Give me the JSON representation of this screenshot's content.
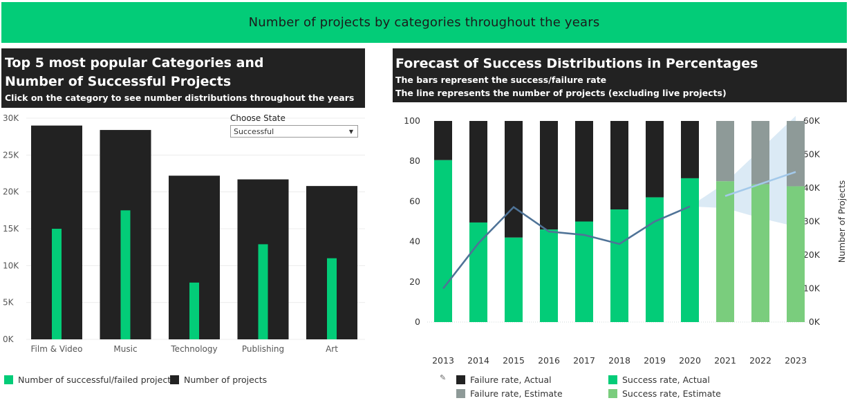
{
  "header": {
    "title": "Number of projects by categories throughout the years"
  },
  "left_panel": {
    "title": "Top 5 most popular Categories and Number of Successful  Projects",
    "subtitle": "Click on the category to see number distributions throughout the years",
    "filter": {
      "label": "Choose State",
      "value": "Successful"
    },
    "legend": [
      {
        "label": "Number of successful/failed projects",
        "color": "#03cc78"
      },
      {
        "label": "Number of projects",
        "color": "#222222"
      }
    ]
  },
  "right_panel": {
    "title": "Forecast of  Success Distributions in Percentages",
    "subtitle1": "The bars represent the success/failure rate",
    "subtitle2": "The line represents the number of projects (excluding live projects)",
    "legend": [
      {
        "label": "Failure rate, Actual",
        "color": "#222222"
      },
      {
        "label": "Success rate, Actual",
        "color": "#03cc78"
      },
      {
        "label": "Failure rate, Estimate",
        "color": "#8e9a98"
      },
      {
        "label": "Success rate, Estimate",
        "color": "#7acd7d"
      }
    ]
  },
  "chart_data": [
    {
      "type": "bar",
      "categories": [
        "Film & Video",
        "Music",
        "Technology",
        "Publishing",
        "Art"
      ],
      "series": [
        {
          "name": "Number of projects",
          "values": [
            29000,
            28400,
            22200,
            21700,
            20800
          ],
          "color": "#222222"
        },
        {
          "name": "Number of successful/failed projects",
          "values": [
            15000,
            17500,
            7700,
            12900,
            11000
          ],
          "color": "#03cc78"
        }
      ],
      "ylim": [
        0,
        30000
      ],
      "yticks": [
        "0K",
        "5K",
        "10K",
        "15K",
        "20K",
        "25K",
        "30K"
      ],
      "grid": true
    },
    {
      "type": "bar",
      "categories": [
        "2013",
        "2014",
        "2015",
        "2016",
        "2017",
        "2018",
        "2019",
        "2020",
        "2021",
        "2022",
        "2023"
      ],
      "series": [
        {
          "name": "Success rate, Actual",
          "values": [
            80.5,
            49.5,
            42,
            46,
            50,
            56,
            62,
            71.5,
            null,
            null,
            null
          ],
          "color": "#03cc78"
        },
        {
          "name": "Success rate, Estimate",
          "values": [
            null,
            null,
            null,
            null,
            null,
            null,
            null,
            null,
            70,
            68.5,
            67.5
          ],
          "color": "#7acd7d"
        },
        {
          "name": "Failure rate, Actual",
          "values": [
            19.5,
            50.5,
            58,
            54,
            50,
            44,
            38,
            28.5,
            null,
            null,
            null
          ],
          "color": "#222222"
        },
        {
          "name": "Failure rate, Estimate",
          "values": [
            null,
            null,
            null,
            null,
            null,
            null,
            null,
            null,
            30,
            31.5,
            32.5
          ],
          "color": "#8e9a98"
        }
      ],
      "line": {
        "values": [
          10000,
          23500,
          34300,
          27000,
          26000,
          23300,
          30000,
          34500,
          37600,
          41200,
          44800
        ],
        "forecast_band": {
          "lower": [
            34000,
            31000,
            28500
          ],
          "upper": [
            41500,
            51500,
            61500
          ]
        }
      },
      "ylim": [
        0,
        100
      ],
      "yticks": [
        "0",
        "20",
        "40",
        "60",
        "80",
        "100"
      ],
      "y2lim": [
        0,
        60000
      ],
      "y2ticks": [
        "0K",
        "10K",
        "20K",
        "30K",
        "40K",
        "50K",
        "60K"
      ],
      "y2label": "Number of Projects"
    }
  ]
}
